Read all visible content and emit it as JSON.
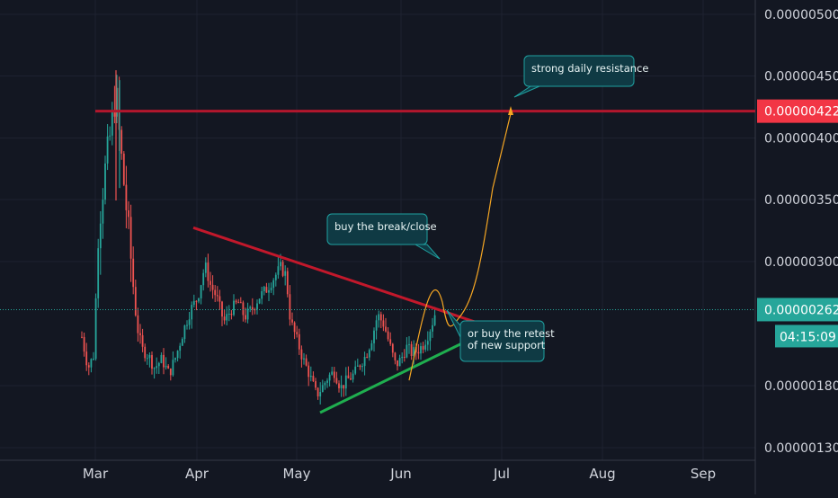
{
  "chart_data": {
    "type": "candlestick",
    "title": "",
    "xlabel": "",
    "ylabel": "",
    "x_ticks": [
      "Mar",
      "Apr",
      "May",
      "Jun",
      "Jul",
      "Aug",
      "Sep"
    ],
    "y_ticks": [
      "0.00000500",
      "0.00000450",
      "0.00000400",
      "0.00000350",
      "0.00000300",
      "0.00000180",
      "0.00000130"
    ],
    "ylim": [
      1.3e-06,
      5e-06
    ],
    "grid": true,
    "last_price": "0.00000262",
    "countdown": "04:15:09",
    "resistance_price": "0.00000422",
    "annotations": [
      {
        "text": "strong daily resistance"
      },
      {
        "text": "buy the break/close"
      },
      {
        "text": "or buy the retest\nof new support"
      }
    ],
    "colors": {
      "background": "#131722",
      "up": "#26a69a",
      "down": "#ef5350",
      "resistance": "#b2172d",
      "downtrend": "#c2182b",
      "support": "#1fae4f",
      "path": "#f5a623",
      "callout": "#0f3a44",
      "callout_border": "#1fa0a0",
      "price_badge": "#26a69a",
      "resistance_badge": "#f23645"
    }
  }
}
